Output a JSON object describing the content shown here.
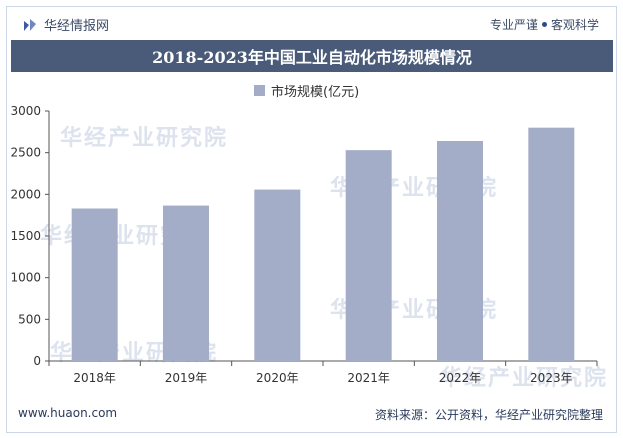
{
  "header": {
    "brand_name": "华经情报网",
    "slogan_left": "专业严谨",
    "slogan_right": "客观科学"
  },
  "watermark_text": "华经产业研究院",
  "footer": {
    "website": "www.huaon.com",
    "source": "资料来源：公开资料，华经产业研究院整理"
  },
  "colors": {
    "title_bar": "#4a5b7a",
    "bar": "#a3adc7"
  },
  "chart_data": {
    "type": "bar",
    "title": "2018-2023年中国工业自动化市场规模情况",
    "categories": [
      "2018年",
      "2019年",
      "2020年",
      "2021年",
      "2022年",
      "2023年"
    ],
    "series": [
      {
        "name": "市场规模(亿元)",
        "values": [
          1830,
          1865,
          2057,
          2530,
          2640,
          2800
        ]
      }
    ],
    "ylim": [
      0,
      3000
    ],
    "yticks": [
      0,
      500,
      1000,
      1500,
      2000,
      2500,
      3000
    ],
    "grid": false,
    "legend": "top-center"
  }
}
